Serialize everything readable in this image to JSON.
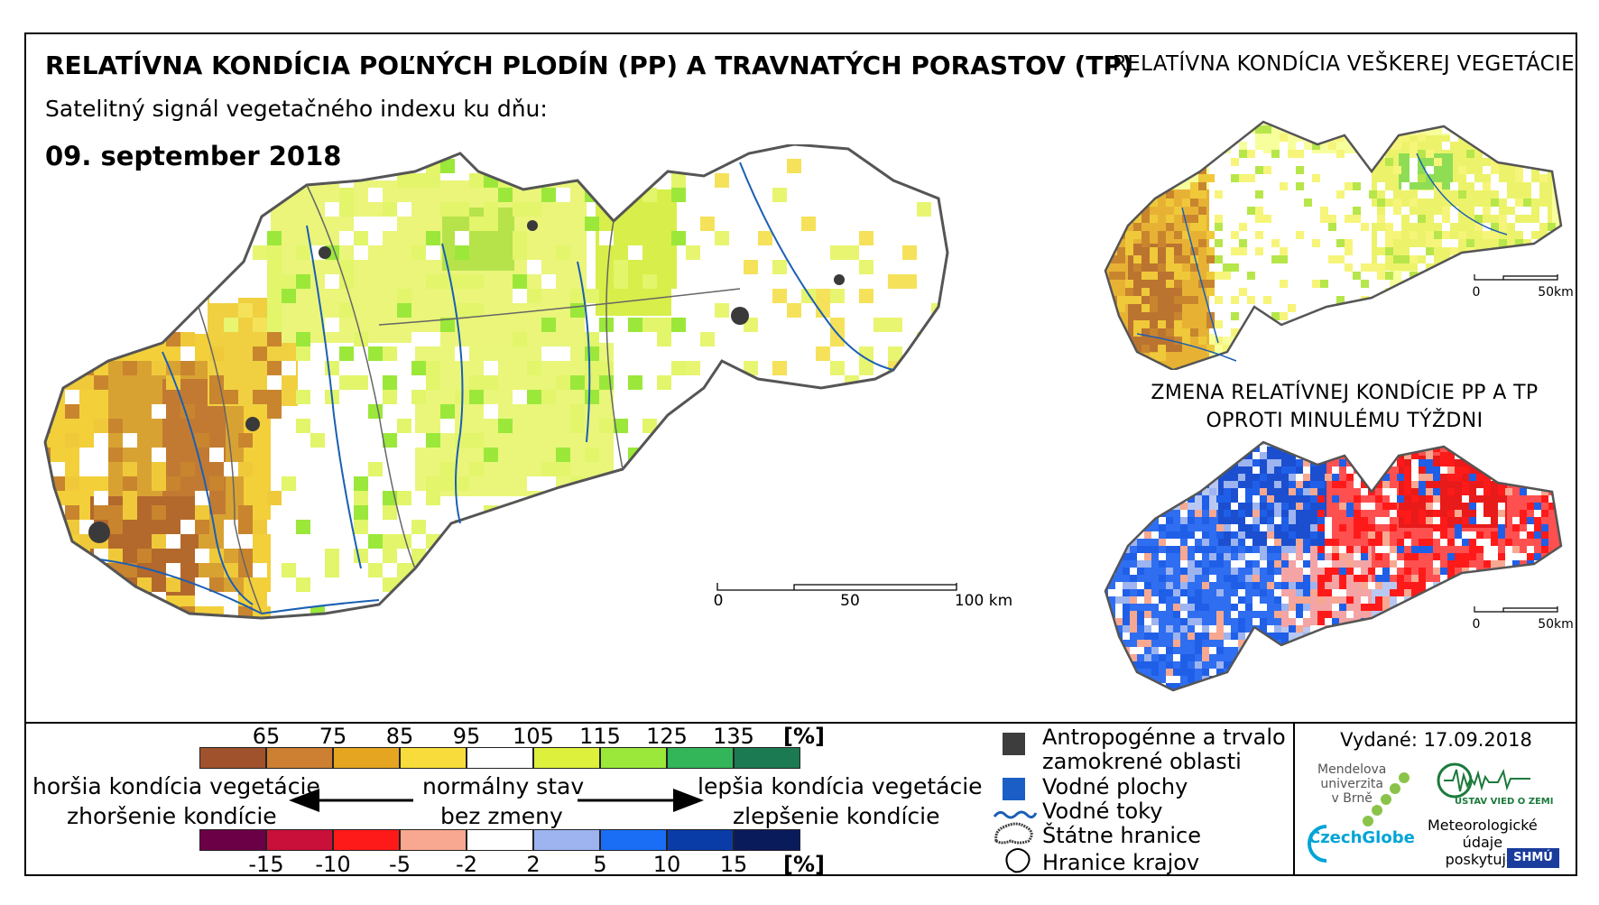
{
  "header": {
    "title": "RELATÍVNA KONDÍCIA POĽNÝCH PLODÍN (PP) A TRAVNATÝCH PORASTOV (TP)",
    "subtitle": "Satelitný signál vegetačného indexu ku dňu:",
    "date": "09. september 2018"
  },
  "side": {
    "all_veg_title": "RELATÍVNA KONDÍCIA VEŠKEREJ VEGETÁCIE",
    "change_title_line1": "ZMENA RELATÍVNEJ KONDÍCIE PP A TP",
    "change_title_line2": "OPROTI MINULÉMU TÝŽDNI"
  },
  "scale_main": {
    "labels": [
      "0",
      "50",
      "100 km"
    ]
  },
  "scale_small": {
    "labels": [
      "0",
      "50km"
    ]
  },
  "legend": {
    "unit": "[%]",
    "condition_ticks": [
      "65",
      "75",
      "85",
      "95",
      "105",
      "115",
      "125",
      "135"
    ],
    "condition_colors": [
      "#a0522d",
      "#cd7f32",
      "#e5a521",
      "#f7dc3b",
      "#ffffff",
      "#dcf03c",
      "#9be83a",
      "#33b55a",
      "#1c7a52"
    ],
    "change_ticks": [
      "-15",
      "-10",
      "-5",
      "-2",
      "2",
      "5",
      "10",
      "15"
    ],
    "change_colors": [
      "#6b0046",
      "#c8103a",
      "#ff1a1a",
      "#f8a890",
      "#ffffff",
      "#9db4f0",
      "#1a6ef5",
      "#0a3ca8",
      "#0a1b5c"
    ],
    "worse_line1": "horšia kondícia vegetácie",
    "worse_line2": "zhoršenie kondície",
    "normal_line1": "normálny stav",
    "normal_line2": "bez zmeny",
    "better_line1": "lepšia kondícia vegetácie",
    "better_line2": "zlepšenie kondície",
    "items": {
      "anthropogenic_line1": "Antropogénne a trvalo",
      "anthropogenic_line2": "zamokrené oblasti",
      "water_bodies": "Vodné plochy",
      "water_streams": "Vodné toky",
      "state_borders": "Štátne hranice",
      "region_borders": "Hranice krajov"
    }
  },
  "footer": {
    "issued": "Vydané: 17.09.2018",
    "mendel_line1": "Mendelova",
    "mendel_line2": "univerzita",
    "mendel_line3": "v Brně",
    "czechglobe": "CzechGlobe",
    "uvz": "ÚSTAV VIED O ZEMI",
    "met_line1": "Meteorologické",
    "met_line2": "údaje",
    "met_line3": "poskytuje:",
    "shmu": "SHMÚ"
  }
}
